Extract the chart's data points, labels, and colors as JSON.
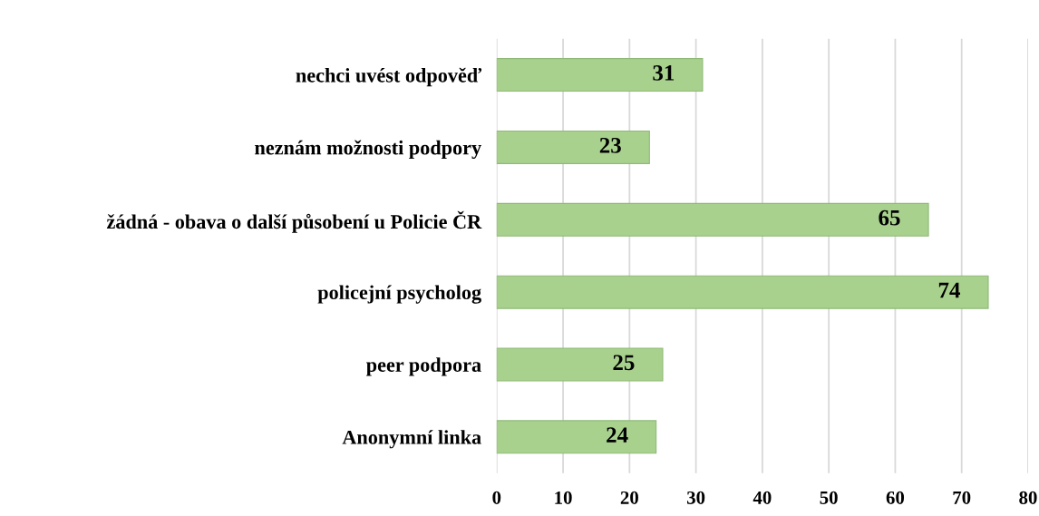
{
  "chart_data": {
    "type": "bar",
    "orientation": "horizontal",
    "categories": [
      "nechci uvést odpověď",
      "neznám možnosti podpory",
      "žádná - obava o další působení u Policie ČR",
      "policejní psycholog",
      "peer podpora",
      "Anonymní linka"
    ],
    "values": [
      31,
      23,
      65,
      74,
      25,
      24
    ],
    "color": "#a9d18e",
    "xlim": [
      0,
      80
    ],
    "xticks": [
      0,
      10,
      20,
      30,
      40,
      50,
      60,
      70,
      80
    ],
    "grid": "x",
    "data_labels": true
  }
}
